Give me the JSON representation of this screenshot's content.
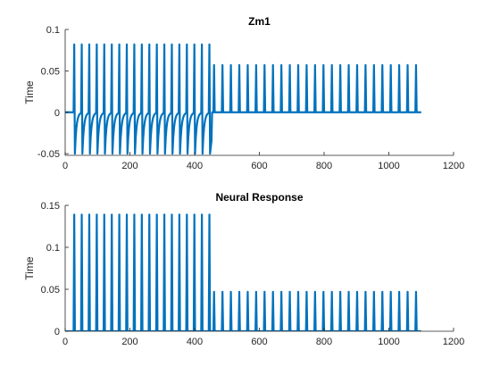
{
  "chart_data": [
    {
      "type": "line",
      "title": "Zm1",
      "xlabel": "",
      "ylabel": "Time",
      "xlim": [
        0,
        1200
      ],
      "ylim": [
        -0.052,
        0.1
      ],
      "xticks": [
        0,
        200,
        400,
        600,
        800,
        1000,
        1200
      ],
      "xtick_labels": [
        "0",
        "200",
        "400",
        "600",
        "800",
        "1000",
        "1200"
      ],
      "yticks": [
        -0.05,
        0,
        0.05,
        0.1
      ],
      "ytick_labels": [
        "-0.05",
        "0",
        "0.05",
        "0.1"
      ],
      "grid": false,
      "series": [
        {
          "color": "#0072BD",
          "x_range": [
            0,
            1100
          ],
          "segments": [
            {
              "x_start": 28,
              "x_end": 448,
              "period": 23.2,
              "peak": 0.082,
              "trough": -0.05,
              "baseline": 0,
              "pulse_width": 4
            },
            {
              "x_start": 460,
              "x_end": 1085,
              "period": 26,
              "peak": 0.057,
              "trough": 0,
              "baseline": 0,
              "pulse_width": 4
            }
          ]
        }
      ]
    },
    {
      "type": "line",
      "title": "Neural Response",
      "xlabel": "",
      "ylabel": "Time",
      "xlim": [
        0,
        1200
      ],
      "ylim": [
        0,
        0.15
      ],
      "xticks": [
        0,
        200,
        400,
        600,
        800,
        1000,
        1200
      ],
      "xtick_labels": [
        "0",
        "200",
        "400",
        "600",
        "800",
        "1000",
        "1200"
      ],
      "yticks": [
        0,
        0.05,
        0.1,
        0.15
      ],
      "ytick_labels": [
        "0",
        "0.05",
        "0.1",
        "0.15"
      ],
      "grid": false,
      "series": [
        {
          "color": "#0072BD",
          "x_range": [
            0,
            1100
          ],
          "segments": [
            {
              "x_start": 28,
              "x_end": 448,
              "period": 23.2,
              "peak": 0.139,
              "trough": 0,
              "baseline": 0,
              "pulse_width": 4
            },
            {
              "x_start": 460,
              "x_end": 1085,
              "period": 26,
              "peak": 0.047,
              "trough": 0,
              "baseline": 0,
              "pulse_width": 4
            }
          ]
        }
      ]
    }
  ]
}
